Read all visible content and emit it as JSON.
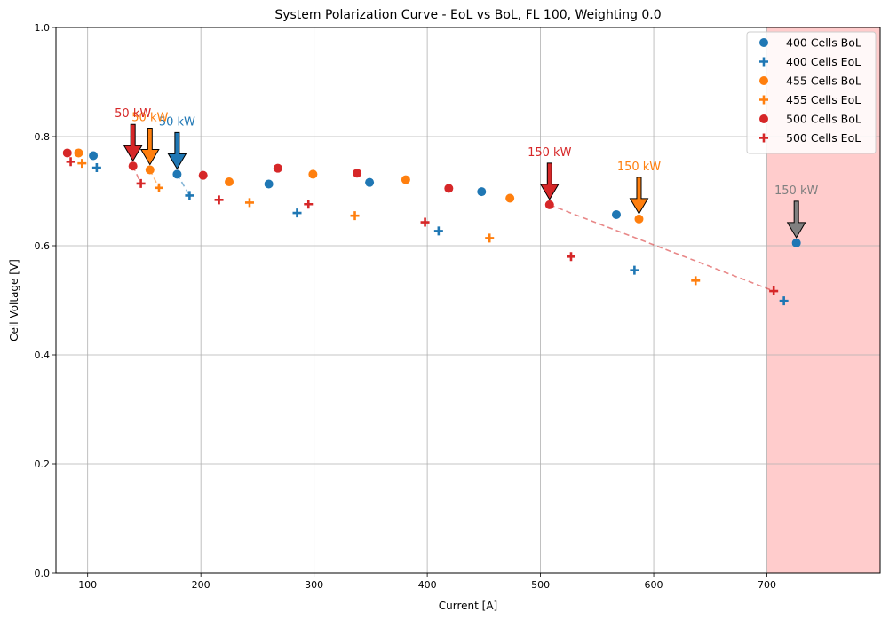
{
  "chart_data": {
    "type": "scatter",
    "title": "System Polarization Curve - EoL vs BoL, FL 100, Weighting 0.0",
    "xlabel": "Current [A]",
    "ylabel": "Cell Voltage [V]",
    "xlim": [
      72,
      800
    ],
    "ylim": [
      0,
      1.0
    ],
    "xticks": [
      100,
      200,
      300,
      400,
      500,
      600,
      700
    ],
    "yticks": [
      0.0,
      0.2,
      0.4,
      0.6,
      0.8,
      1.0
    ],
    "xtick_labels": [
      "100",
      "200",
      "300",
      "400",
      "500",
      "600",
      "700"
    ],
    "ytick_labels": [
      "0.0",
      "0.2",
      "0.4",
      "0.6",
      "0.8",
      "1.0"
    ],
    "grid": true,
    "legend_position": "top-right",
    "shaded_region": {
      "x_from": 700,
      "x_to": 800,
      "color": "#ffcccc"
    },
    "series": [
      {
        "name": "400 Cells BoL",
        "marker": "circle",
        "color": "#1f77b4",
        "points": [
          [
            105,
            0.765
          ],
          [
            179,
            0.731
          ],
          [
            260,
            0.713
          ],
          [
            349,
            0.716
          ],
          [
            448,
            0.699
          ],
          [
            567,
            0.657
          ],
          [
            726,
            0.605
          ]
        ]
      },
      {
        "name": "400 Cells EoL",
        "marker": "plus",
        "color": "#1f77b4",
        "points": [
          [
            108,
            0.743
          ],
          [
            190,
            0.692
          ],
          [
            285,
            0.66
          ],
          [
            410,
            0.627
          ],
          [
            583,
            0.555
          ],
          [
            715,
            0.499
          ]
        ]
      },
      {
        "name": "455 Cells BoL",
        "marker": "circle",
        "color": "#ff7f0e",
        "points": [
          [
            92,
            0.77
          ],
          [
            155,
            0.739
          ],
          [
            225,
            0.717
          ],
          [
            299,
            0.731
          ],
          [
            381,
            0.721
          ],
          [
            473,
            0.687
          ],
          [
            587,
            0.649
          ]
        ]
      },
      {
        "name": "455 Cells EoL",
        "marker": "plus",
        "color": "#ff7f0e",
        "points": [
          [
            95,
            0.751
          ],
          [
            163,
            0.706
          ],
          [
            243,
            0.679
          ],
          [
            336,
            0.655
          ],
          [
            455,
            0.614
          ],
          [
            637,
            0.536
          ]
        ]
      },
      {
        "name": "500 Cells BoL",
        "marker": "circle",
        "color": "#d62728",
        "points": [
          [
            82,
            0.77
          ],
          [
            140,
            0.746
          ],
          [
            202,
            0.729
          ],
          [
            268,
            0.742
          ],
          [
            338,
            0.733
          ],
          [
            419,
            0.705
          ],
          [
            508,
            0.675
          ]
        ]
      },
      {
        "name": "500 Cells EoL",
        "marker": "plus",
        "color": "#d62728",
        "points": [
          [
            85,
            0.754
          ],
          [
            147,
            0.714
          ],
          [
            216,
            0.684
          ],
          [
            295,
            0.676
          ],
          [
            398,
            0.643
          ],
          [
            527,
            0.58
          ],
          [
            706,
            0.517
          ]
        ]
      }
    ],
    "connectors": [
      {
        "color": "#1f77b4",
        "from": [
          179,
          0.731
        ],
        "to": [
          190,
          0.692
        ]
      },
      {
        "color": "#ff7f0e",
        "from": [
          155,
          0.739
        ],
        "to": [
          163,
          0.706
        ]
      },
      {
        "color": "#d62728",
        "from": [
          140,
          0.746
        ],
        "to": [
          147,
          0.714
        ]
      },
      {
        "color": "#d62728",
        "from": [
          508,
          0.675
        ],
        "to": [
          706,
          0.517
        ]
      }
    ],
    "annotations": [
      {
        "text": "50 kW",
        "color": "#1f77b4",
        "arrow_fill": "#1f77b4",
        "point": [
          179,
          0.731
        ]
      },
      {
        "text": "50 kW",
        "color": "#ff7f0e",
        "arrow_fill": "#ff7f0e",
        "point": [
          155,
          0.739
        ]
      },
      {
        "text": "50 kW",
        "color": "#d62728",
        "arrow_fill": "#d62728",
        "point": [
          140,
          0.746
        ]
      },
      {
        "text": "150 kW",
        "color": "#d62728",
        "arrow_fill": "#d62728",
        "point": [
          508,
          0.675
        ]
      },
      {
        "text": "150 kW",
        "color": "#ff7f0e",
        "arrow_fill": "#ff7f0e",
        "point": [
          587,
          0.649
        ]
      },
      {
        "text": "150 kW",
        "color": "#808080",
        "arrow_fill": "#808080",
        "point": [
          726,
          0.605
        ]
      }
    ]
  }
}
